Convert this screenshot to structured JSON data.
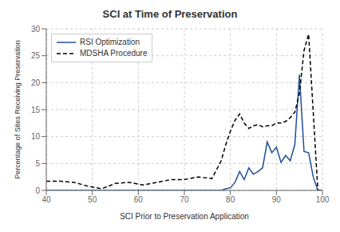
{
  "chart_data": {
    "type": "line",
    "title": "SCI at Time of Preservation",
    "xlabel": "SCI Prior to Preservation Application",
    "ylabel": "Percentage of Sites Receiving Preservation",
    "x": [
      40,
      43,
      46,
      49,
      52,
      55,
      58,
      61,
      64,
      67,
      70,
      73,
      76,
      78,
      79,
      80,
      81,
      82,
      83,
      84,
      85,
      86,
      87,
      88,
      89,
      90,
      91,
      92,
      93,
      94,
      95,
      96,
      97,
      98,
      99,
      100
    ],
    "series": [
      {
        "name": "RSI Optimization",
        "color": "#1f4e9c",
        "line_style": "solid",
        "values": [
          0,
          0,
          0,
          0,
          0,
          0,
          0,
          0,
          0,
          0,
          0,
          0,
          0,
          0,
          0.3,
          0.5,
          1.5,
          3.5,
          2.0,
          4.2,
          3.0,
          3.5,
          4.2,
          9.0,
          7.0,
          8.0,
          5.2,
          6.5,
          5.5,
          8.5,
          21.5,
          7.2,
          7.0,
          2.5,
          0,
          0
        ]
      },
      {
        "name": "MDSHA Procedure",
        "color": "#000000",
        "line_style": "dashed",
        "values": [
          1.7,
          1.7,
          1.5,
          0.8,
          0.3,
          1.3,
          1.5,
          1.0,
          1.5,
          2.0,
          2.0,
          2.5,
          2.2,
          5.5,
          8.5,
          11.0,
          13.0,
          14.2,
          12.5,
          11.5,
          12.0,
          12.2,
          11.8,
          12.0,
          12.0,
          12.5,
          12.5,
          12.8,
          13.5,
          14.5,
          18.0,
          26.0,
          29.0,
          14.5,
          0,
          0
        ]
      }
    ],
    "xlim": [
      40,
      100
    ],
    "ylim": [
      0,
      30
    ],
    "xticks": [
      40,
      50,
      60,
      70,
      80,
      90,
      100
    ],
    "yticks": [
      0,
      5,
      10,
      15,
      20,
      25,
      30
    ],
    "grid": true,
    "legend": "upper left"
  }
}
